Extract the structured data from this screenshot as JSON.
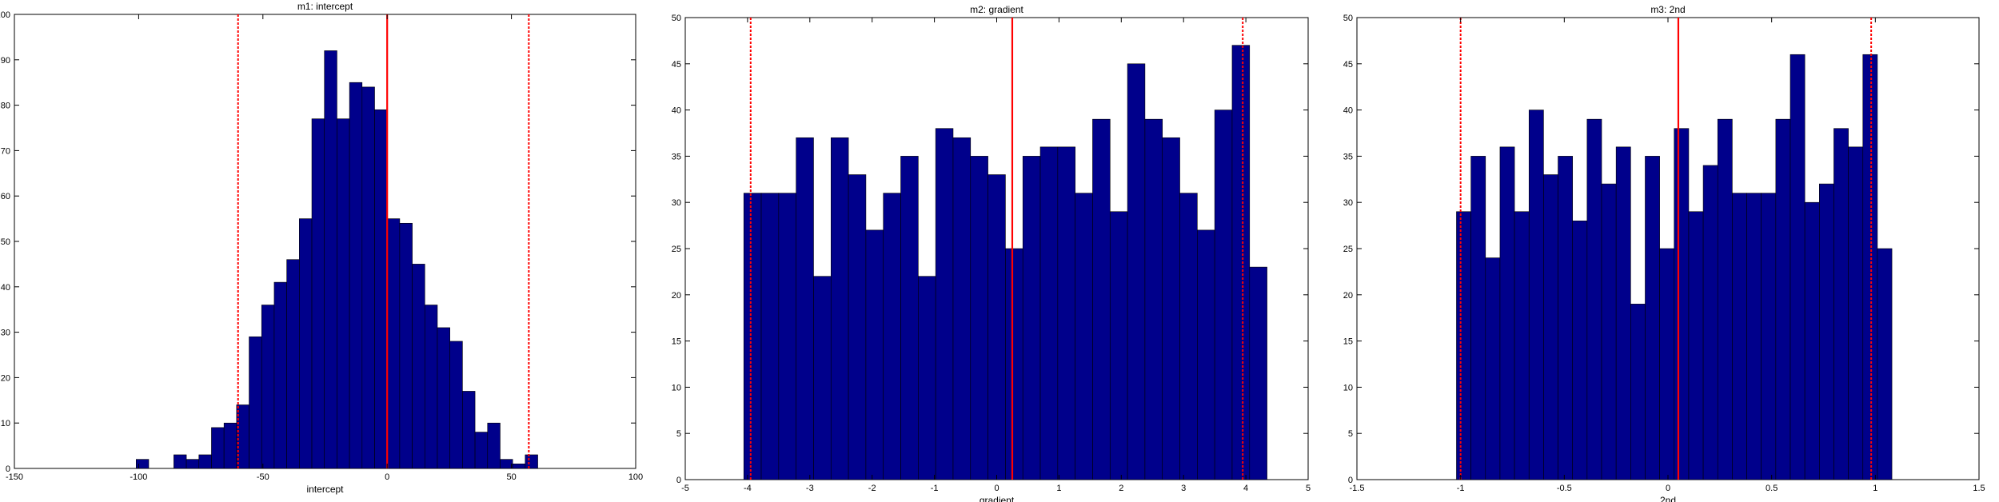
{
  "colors": {
    "bar_fill": "#00008b",
    "bar_edge": "#000000",
    "line": "#ff0000",
    "axes": "#000000",
    "background": "#ffffff"
  },
  "chart_data": [
    {
      "type": "bar",
      "title": "m1: intercept",
      "xlabel": "intercept",
      "ylabel": "",
      "xlim": [
        -150,
        100
      ],
      "ylim": [
        0,
        100
      ],
      "xticks": [
        "-150",
        "-100",
        "-50",
        "0",
        "50",
        "100"
      ],
      "yticks": [
        "0",
        "10",
        "20",
        "30",
        "40",
        "50",
        "60",
        "70",
        "80",
        "90",
        "100"
      ],
      "grid": false,
      "bin_width": 5.05,
      "x": [
        -101,
        -95.95,
        -90.9,
        -85.85,
        -80.8,
        -75.75,
        -70.7,
        -65.65,
        -60.6,
        -55.55,
        -50.5,
        -45.45,
        -40.4,
        -35.35,
        -30.3,
        -25.25,
        -20.2,
        -15.15,
        -10.1,
        -5.05,
        0,
        5.05,
        10.1,
        15.15,
        20.2,
        25.25,
        30.3,
        35.35,
        40.4,
        45.45,
        50.5,
        55.55,
        60.6,
        65.65,
        70.7,
        75.75,
        80.8,
        85.85
      ],
      "values": [
        2,
        0,
        0,
        3,
        2,
        3,
        9,
        10,
        14,
        29,
        36,
        41,
        46,
        55,
        77,
        92,
        77,
        85,
        84,
        79,
        55,
        54,
        45,
        36,
        31,
        28,
        17,
        8,
        10,
        2,
        1,
        3,
        0,
        0,
        0,
        0,
        0,
        0
      ],
      "vlines": [
        {
          "x": 0,
          "style": "solid"
        },
        {
          "x": -60,
          "style": "dotted"
        },
        {
          "x": 57,
          "style": "dotted"
        }
      ]
    },
    {
      "type": "bar",
      "title": "m2: gradient",
      "xlabel": "gradient",
      "ylabel": "",
      "xlim": [
        -5,
        5
      ],
      "ylim": [
        0,
        50
      ],
      "xticks": [
        "-5",
        "-4",
        "-3",
        "-2",
        "-1",
        "0",
        "1",
        "2",
        "3",
        "4",
        "5"
      ],
      "yticks": [
        "0",
        "5",
        "10",
        "15",
        "20",
        "25",
        "30",
        "35",
        "40",
        "45",
        "50"
      ],
      "grid": false,
      "bin_width": 0.28,
      "x": [
        -4.06,
        -3.78,
        -3.5,
        -3.22,
        -2.94,
        -2.66,
        -2.38,
        -2.1,
        -1.82,
        -1.54,
        -1.26,
        -0.98,
        -0.7,
        -0.42,
        -0.14,
        0.14,
        0.42,
        0.7,
        0.98,
        1.26,
        1.54,
        1.82,
        2.1,
        2.38,
        2.66,
        2.94,
        3.22,
        3.5,
        3.78,
        4.06
      ],
      "values": [
        31,
        31,
        31,
        37,
        22,
        37,
        33,
        27,
        31,
        35,
        22,
        38,
        37,
        35,
        33,
        25,
        35,
        36,
        36,
        31,
        39,
        29,
        45,
        39,
        37,
        31,
        27,
        40,
        47,
        23
      ],
      "vlines": [
        {
          "x": 0.25,
          "style": "solid"
        },
        {
          "x": -3.95,
          "style": "dotted"
        },
        {
          "x": 3.95,
          "style": "dotted"
        }
      ]
    },
    {
      "type": "bar",
      "title": "m3: 2nd",
      "xlabel": "2nd",
      "ylabel": "",
      "xlim": [
        -1.5,
        1.5
      ],
      "ylim": [
        0,
        50
      ],
      "xticks": [
        "-1.5",
        "-1",
        "-0.5",
        "0",
        "0.5",
        "1",
        "1.5"
      ],
      "yticks": [
        "0",
        "5",
        "10",
        "15",
        "20",
        "25",
        "30",
        "35",
        "40",
        "45",
        "50"
      ],
      "grid": false,
      "bin_width": 0.07,
      "x": [
        -1.02,
        -0.95,
        -0.88,
        -0.81,
        -0.74,
        -0.67,
        -0.6,
        -0.53,
        -0.46,
        -0.39,
        -0.32,
        -0.25,
        -0.18,
        -0.11,
        -0.04,
        0.03,
        0.1,
        0.17,
        0.24,
        0.31,
        0.38,
        0.45,
        0.52,
        0.59,
        0.66,
        0.73,
        0.8,
        0.87,
        0.94,
        1.01
      ],
      "values": [
        29,
        35,
        24,
        36,
        29,
        40,
        33,
        35,
        28,
        39,
        32,
        36,
        19,
        35,
        25,
        38,
        29,
        34,
        39,
        31,
        31,
        31,
        39,
        46,
        30,
        32,
        38,
        36,
        46,
        25
      ],
      "vlines": [
        {
          "x": 0.05,
          "style": "solid"
        },
        {
          "x": -1.0,
          "style": "dotted"
        },
        {
          "x": 0.98,
          "style": "dotted"
        }
      ]
    }
  ]
}
